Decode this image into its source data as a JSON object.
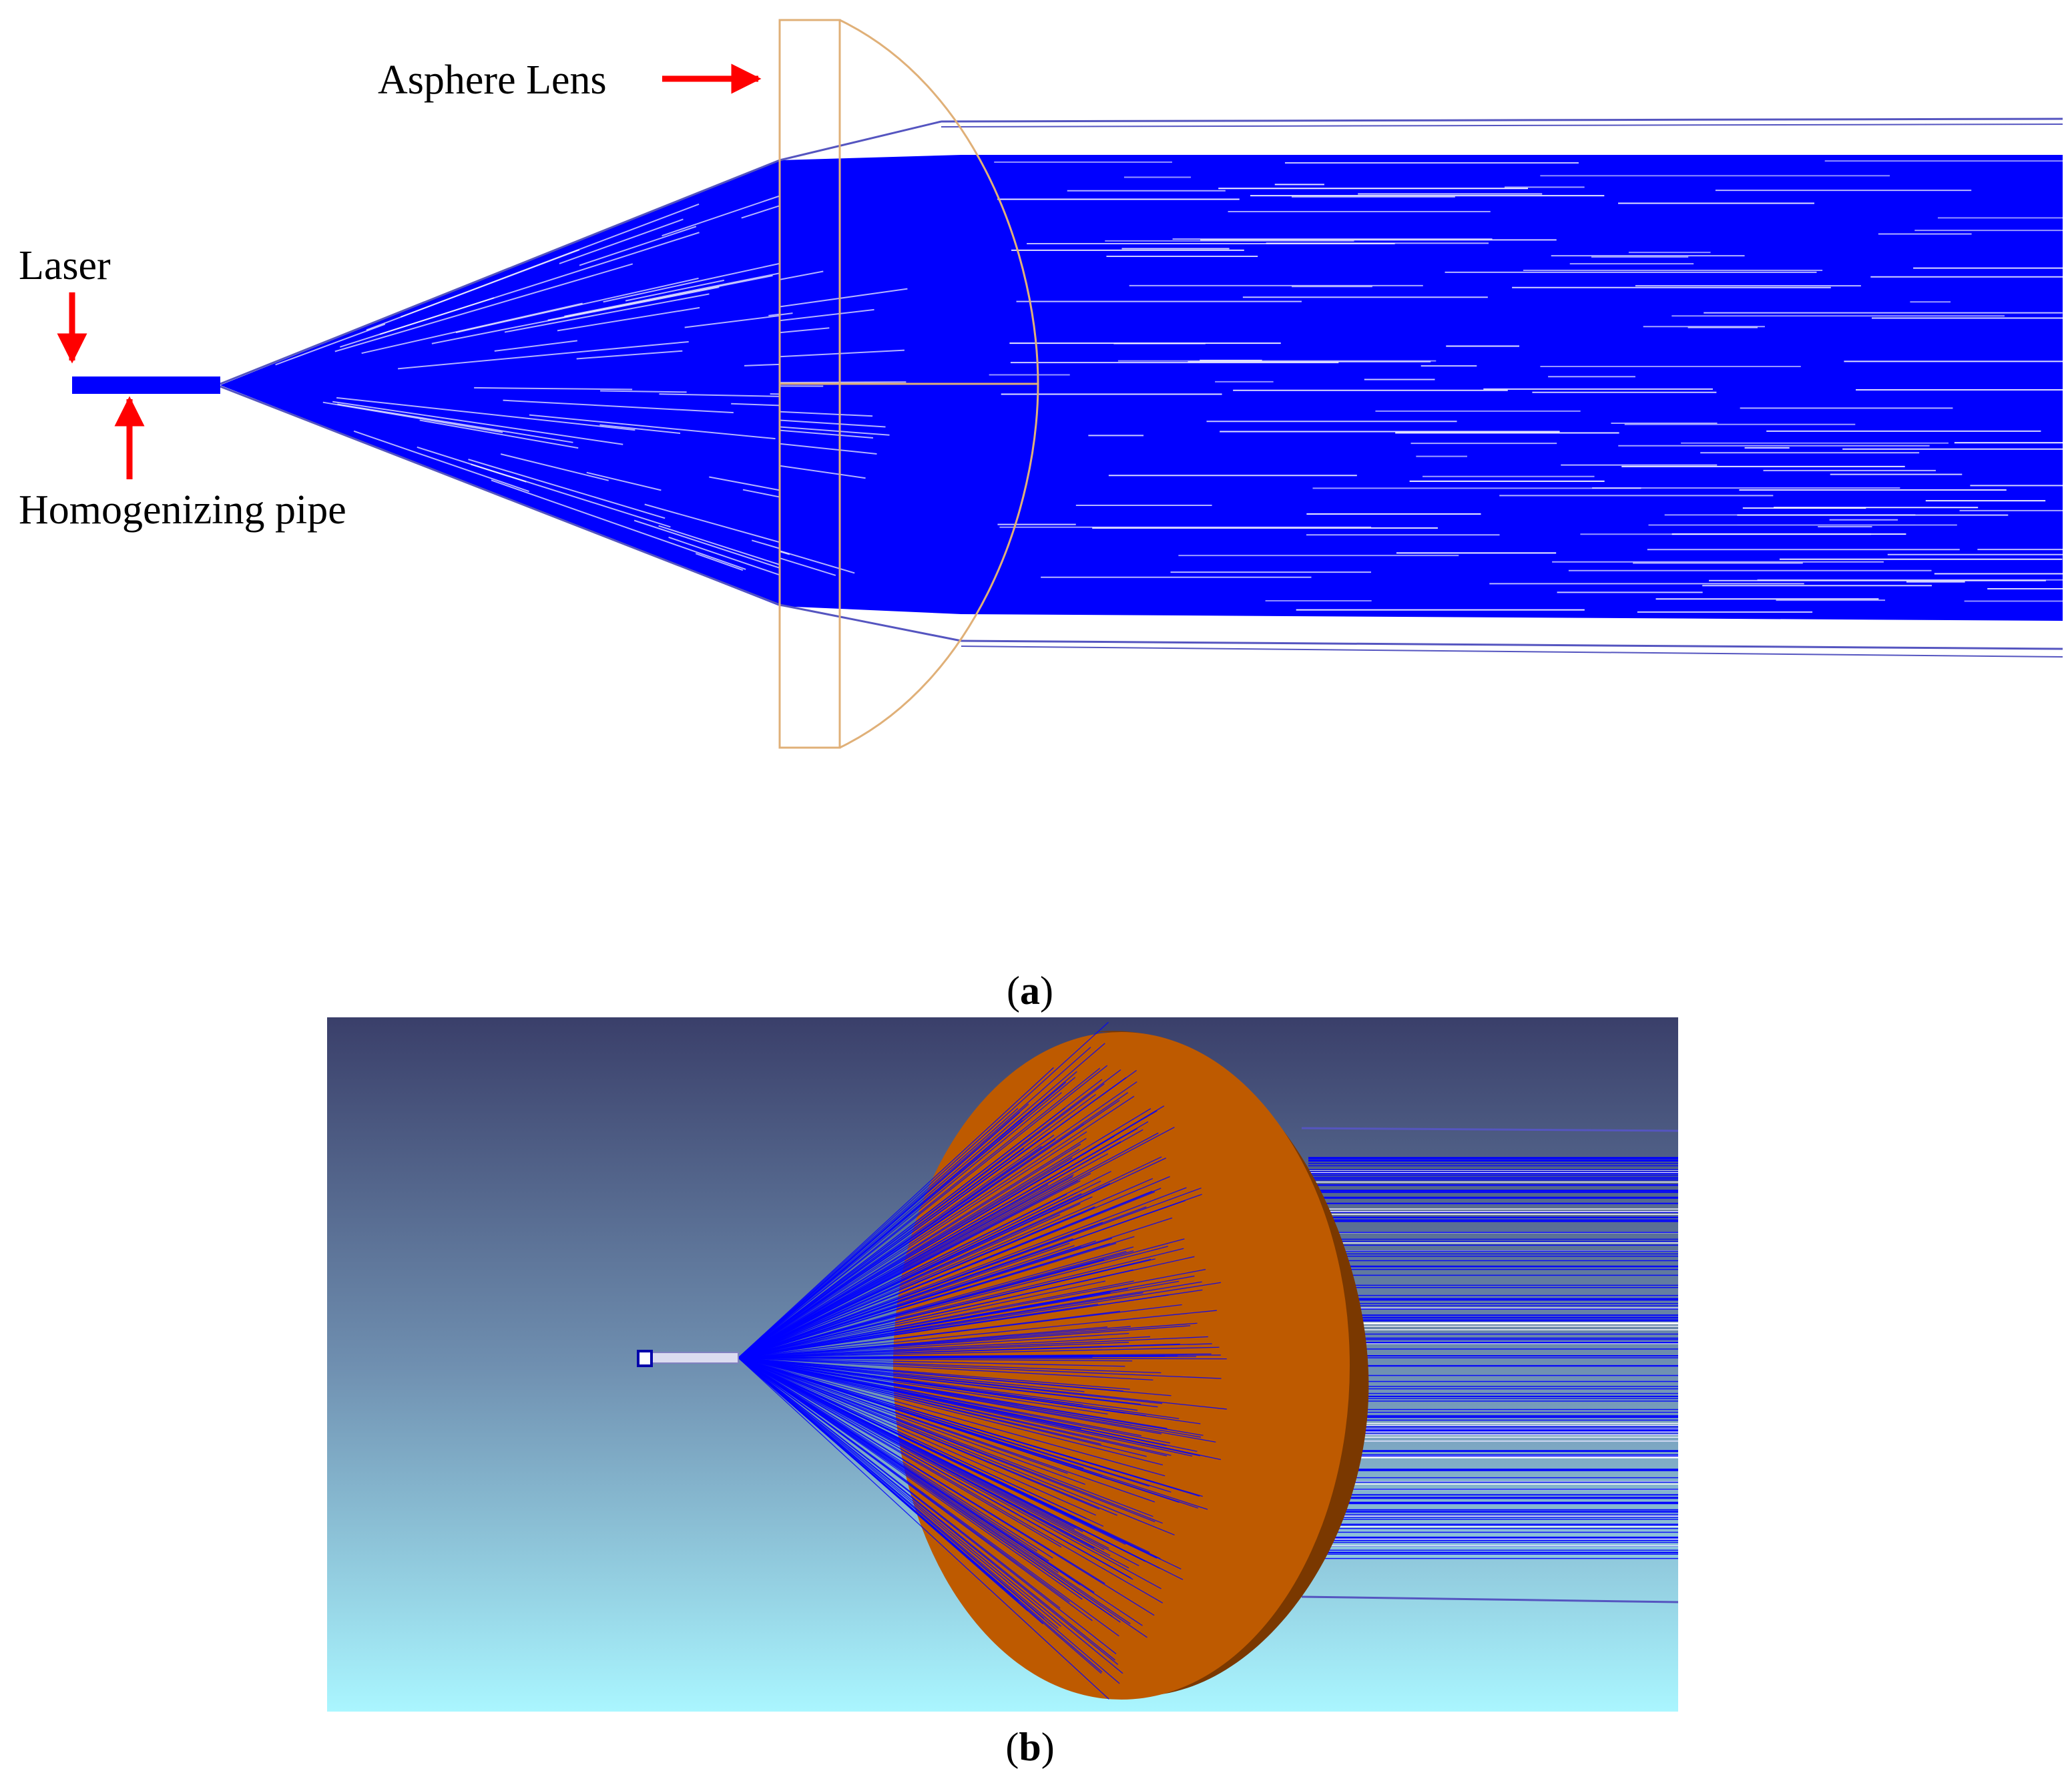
{
  "labels": {
    "laser": "Laser",
    "pipe": "Homogenizing pipe",
    "lens": "Asphere Lens"
  },
  "captions": {
    "a_open": "(",
    "a_letter": "a",
    "a_close": ")",
    "b_open": "(",
    "b_letter": "b",
    "b_close": ")"
  },
  "colors": {
    "ray": "#0000ff",
    "ray_outline": "#5555c0",
    "arrow": "#ff0000",
    "lens_outline": "#e0b078",
    "lens_face": "#be5a00",
    "lens_edge": "#7a3800",
    "bg_top": "#3a3f6a",
    "bg_bottom": "#aaf6ff"
  }
}
